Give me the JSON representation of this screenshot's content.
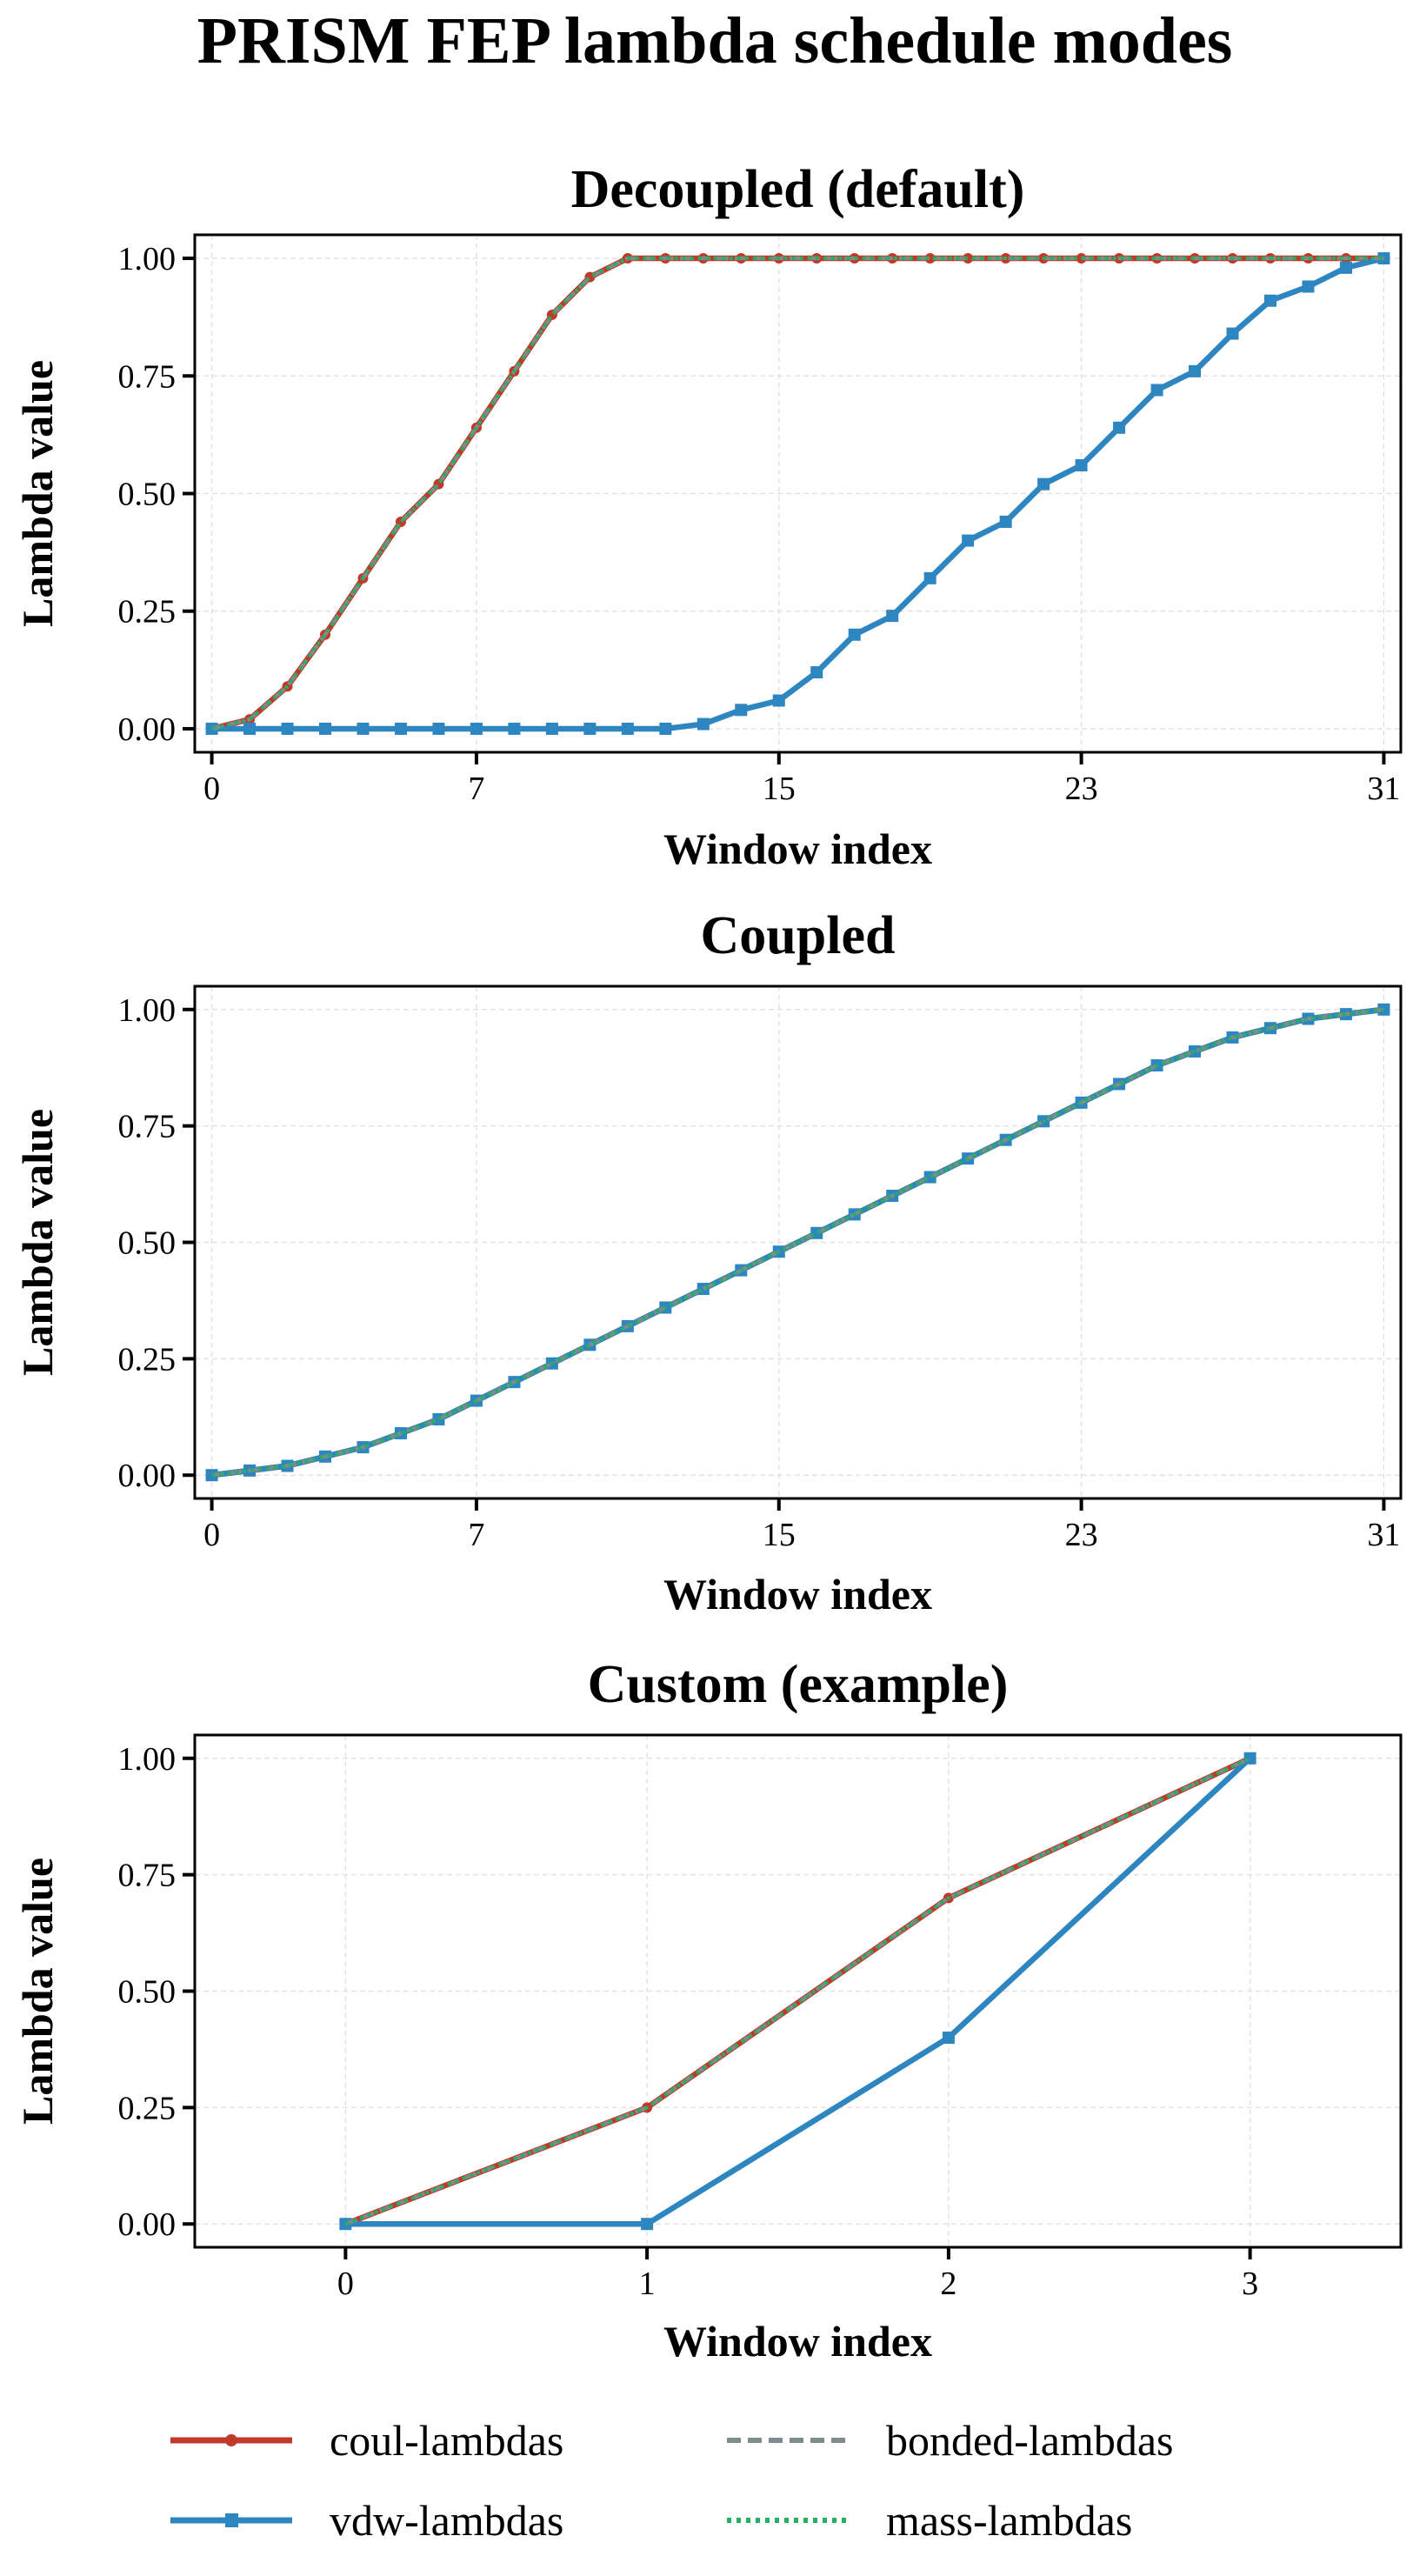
{
  "title": "PRISM FEP lambda schedule modes",
  "colors": {
    "coul": "#c0392b",
    "vdw": "#2e86c1",
    "bonded": "#7f8c8d",
    "mass": "#27ae60"
  },
  "legend": {
    "placement": "bottom",
    "items": [
      {
        "name": "coul-lambdas",
        "key": "coul",
        "style": "solid",
        "marker": "circle"
      },
      {
        "name": "vdw-lambdas",
        "key": "vdw",
        "style": "solid",
        "marker": "square"
      },
      {
        "name": "bonded-lambdas",
        "key": "bonded",
        "style": "dashed",
        "marker": ""
      },
      {
        "name": "mass-lambdas",
        "key": "mass",
        "style": "dotted",
        "marker": ""
      }
    ]
  },
  "chart_data": [
    {
      "type": "line",
      "title": "Decoupled (default)",
      "xlabel": "Window index",
      "ylabel": "Lambda value",
      "xlim": [
        -0.45,
        31.45
      ],
      "ylim": [
        -0.05,
        1.05
      ],
      "xticks": [
        0,
        7,
        15,
        23,
        31
      ],
      "yticks": [
        "0.00",
        "0.25",
        "0.50",
        "0.75",
        "1.00"
      ],
      "grid": true,
      "x": [
        0,
        1,
        2,
        3,
        4,
        5,
        6,
        7,
        8,
        9,
        10,
        11,
        12,
        13,
        14,
        15,
        16,
        17,
        18,
        19,
        20,
        21,
        22,
        23,
        24,
        25,
        26,
        27,
        28,
        29,
        30,
        31
      ],
      "series": [
        {
          "name": "coul-lambdas",
          "key": "coul",
          "values": [
            0,
            0.02,
            0.09,
            0.2,
            0.32,
            0.44,
            0.52,
            0.64,
            0.76,
            0.88,
            0.96,
            1,
            1,
            1,
            1,
            1,
            1,
            1,
            1,
            1,
            1,
            1,
            1,
            1,
            1,
            1,
            1,
            1,
            1,
            1,
            1,
            1
          ]
        },
        {
          "name": "vdw-lambdas",
          "key": "vdw",
          "values": [
            0,
            0,
            0,
            0,
            0,
            0,
            0,
            0,
            0,
            0,
            0,
            0,
            0,
            0.01,
            0.04,
            0.06,
            0.12,
            0.2,
            0.24,
            0.32,
            0.4,
            0.44,
            0.52,
            0.56,
            0.64,
            0.72,
            0.76,
            0.84,
            0.91,
            0.94,
            0.98,
            1
          ]
        },
        {
          "name": "bonded-lambdas",
          "key": "bonded",
          "values": [
            0,
            0.02,
            0.09,
            0.2,
            0.32,
            0.44,
            0.52,
            0.64,
            0.76,
            0.88,
            0.96,
            1,
            1,
            1,
            1,
            1,
            1,
            1,
            1,
            1,
            1,
            1,
            1,
            1,
            1,
            1,
            1,
            1,
            1,
            1,
            1,
            1
          ]
        },
        {
          "name": "mass-lambdas",
          "key": "mass",
          "values": [
            0,
            0.02,
            0.09,
            0.2,
            0.32,
            0.44,
            0.52,
            0.64,
            0.76,
            0.88,
            0.96,
            1,
            1,
            1,
            1,
            1,
            1,
            1,
            1,
            1,
            1,
            1,
            1,
            1,
            1,
            1,
            1,
            1,
            1,
            1,
            1,
            1
          ]
        }
      ]
    },
    {
      "type": "line",
      "title": "Coupled",
      "xlabel": "Window index",
      "ylabel": "Lambda value",
      "xlim": [
        -0.45,
        31.45
      ],
      "ylim": [
        -0.05,
        1.05
      ],
      "xticks": [
        0,
        7,
        15,
        23,
        31
      ],
      "yticks": [
        "0.00",
        "0.25",
        "0.50",
        "0.75",
        "1.00"
      ],
      "grid": true,
      "x": [
        0,
        1,
        2,
        3,
        4,
        5,
        6,
        7,
        8,
        9,
        10,
        11,
        12,
        13,
        14,
        15,
        16,
        17,
        18,
        19,
        20,
        21,
        22,
        23,
        24,
        25,
        26,
        27,
        28,
        29,
        30,
        31
      ],
      "series": [
        {
          "name": "coul-lambdas",
          "key": "coul",
          "values": [
            0,
            0.01,
            0.02,
            0.04,
            0.06,
            0.09,
            0.12,
            0.16,
            0.2,
            0.24,
            0.28,
            0.32,
            0.36,
            0.4,
            0.44,
            0.48,
            0.52,
            0.56,
            0.6,
            0.64,
            0.68,
            0.72,
            0.76,
            0.8,
            0.84,
            0.88,
            0.91,
            0.94,
            0.96,
            0.98,
            0.99,
            1
          ]
        },
        {
          "name": "vdw-lambdas",
          "key": "vdw",
          "values": [
            0,
            0.01,
            0.02,
            0.04,
            0.06,
            0.09,
            0.12,
            0.16,
            0.2,
            0.24,
            0.28,
            0.32,
            0.36,
            0.4,
            0.44,
            0.48,
            0.52,
            0.56,
            0.6,
            0.64,
            0.68,
            0.72,
            0.76,
            0.8,
            0.84,
            0.88,
            0.91,
            0.94,
            0.96,
            0.98,
            0.99,
            1
          ]
        },
        {
          "name": "bonded-lambdas",
          "key": "bonded",
          "values": [
            0,
            0.01,
            0.02,
            0.04,
            0.06,
            0.09,
            0.12,
            0.16,
            0.2,
            0.24,
            0.28,
            0.32,
            0.36,
            0.4,
            0.44,
            0.48,
            0.52,
            0.56,
            0.6,
            0.64,
            0.68,
            0.72,
            0.76,
            0.8,
            0.84,
            0.88,
            0.91,
            0.94,
            0.96,
            0.98,
            0.99,
            1
          ]
        },
        {
          "name": "mass-lambdas",
          "key": "mass",
          "values": [
            0,
            0.01,
            0.02,
            0.04,
            0.06,
            0.09,
            0.12,
            0.16,
            0.2,
            0.24,
            0.28,
            0.32,
            0.36,
            0.4,
            0.44,
            0.48,
            0.52,
            0.56,
            0.6,
            0.64,
            0.68,
            0.72,
            0.76,
            0.8,
            0.84,
            0.88,
            0.91,
            0.94,
            0.96,
            0.98,
            0.99,
            1
          ]
        }
      ]
    },
    {
      "type": "line",
      "title": "Custom (example)",
      "xlabel": "Window index",
      "ylabel": "Lambda value",
      "xlim": [
        -0.5,
        3.5
      ],
      "ylim": [
        -0.05,
        1.05
      ],
      "xticks": [
        0,
        1,
        2,
        3
      ],
      "yticks": [
        "0.00",
        "0.25",
        "0.50",
        "0.75",
        "1.00"
      ],
      "grid": true,
      "x": [
        0,
        1,
        2,
        3
      ],
      "series": [
        {
          "name": "coul-lambdas",
          "key": "coul",
          "values": [
            0,
            0.25,
            0.7,
            1
          ]
        },
        {
          "name": "vdw-lambdas",
          "key": "vdw",
          "values": [
            0,
            0,
            0.4,
            1
          ]
        },
        {
          "name": "bonded-lambdas",
          "key": "bonded",
          "values": [
            0,
            0.25,
            0.7,
            1
          ]
        },
        {
          "name": "mass-lambdas",
          "key": "mass",
          "values": [
            0,
            0.25,
            0.7,
            1
          ]
        }
      ]
    }
  ]
}
